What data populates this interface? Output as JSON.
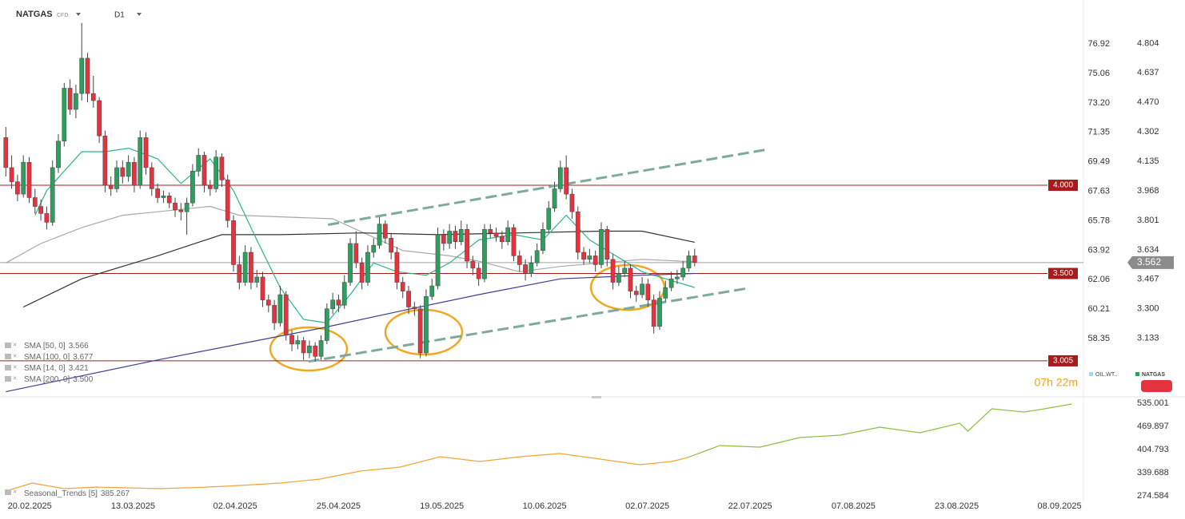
{
  "header": {
    "symbol": "NATGAS",
    "instrument_type": "CFD",
    "timeframe": "D1"
  },
  "chart_data": [
    {
      "type": "candlestick",
      "up_color": "#2e9e5e",
      "down_color": "#e5323f",
      "xlim": [
        -1,
        184.6
      ],
      "ylim": [
        2.81,
        5.05
      ],
      "y2lim": [
        54.78,
        79.69
      ],
      "xticks": [
        {
          "value": 4.1,
          "label": "20.02.2025"
        },
        {
          "value": 21.8,
          "label": "13.03.2025"
        },
        {
          "value": 39.3,
          "label": "02.04.2025"
        },
        {
          "value": 57,
          "label": "25.04.2025"
        },
        {
          "value": 74.7,
          "label": "19.05.2025"
        },
        {
          "value": 92.3,
          "label": "10.06.2025"
        },
        {
          "value": 109.9,
          "label": "02.07.2025"
        },
        {
          "value": 127.5,
          "label": "22.07.2025"
        },
        {
          "value": 145.2,
          "label": "07.08.2025"
        },
        {
          "value": 162.9,
          "label": "23.08.2025"
        },
        {
          "value": 180.5,
          "label": "08.09.2025"
        }
      ],
      "yticks": [
        4.804,
        4.637,
        {
          "value": 4.47,
          "label": "4.470"
        },
        4.302,
        4.135,
        3.968,
        3.801,
        3.634,
        3.467,
        {
          "value": 3.3,
          "label": "3.300"
        },
        3.133
      ],
      "y2ticks": [
        76.92,
        75.06,
        {
          "value": 73.2,
          "label": "73.20"
        },
        71.35,
        69.49,
        67.63,
        65.78,
        63.92,
        62.06,
        60.21,
        58.35
      ],
      "ohlc": [
        [
          4.27,
          4.33,
          4.05,
          4.1
        ],
        [
          4.1,
          4.17,
          3.98,
          4.02
        ],
        [
          4.02,
          4.06,
          3.91,
          3.95
        ],
        [
          3.95,
          4.17,
          3.93,
          4.13
        ],
        [
          4.13,
          4.16,
          3.9,
          3.93
        ],
        [
          3.93,
          3.98,
          3.84,
          3.88
        ],
        [
          3.88,
          3.92,
          3.8,
          3.84
        ],
        [
          3.84,
          3.88,
          3.75,
          3.79
        ],
        [
          3.79,
          4.14,
          3.77,
          4.1
        ],
        [
          4.1,
          4.29,
          4.07,
          4.25
        ],
        [
          4.25,
          4.58,
          4.22,
          4.55
        ],
        [
          4.55,
          4.6,
          4.4,
          4.43
        ],
        [
          4.43,
          4.57,
          4.38,
          4.52
        ],
        [
          4.52,
          4.92,
          4.48,
          4.72
        ],
        [
          4.72,
          4.75,
          4.47,
          4.52
        ],
        [
          4.52,
          4.62,
          4.44,
          4.48
        ],
        [
          4.48,
          4.5,
          4.24,
          4.28
        ],
        [
          4.28,
          4.31,
          3.96,
          4.0
        ],
        [
          4.0,
          4.05,
          3.94,
          3.98
        ],
        [
          3.98,
          4.14,
          3.96,
          4.1
        ],
        [
          4.1,
          4.14,
          4.01,
          4.05
        ],
        [
          4.05,
          4.17,
          4.02,
          4.13
        ],
        [
          4.13,
          4.16,
          3.96,
          4.0
        ],
        [
          4.0,
          4.31,
          3.98,
          4.27
        ],
        [
          4.27,
          4.3,
          4.06,
          4.1
        ],
        [
          4.1,
          4.13,
          3.94,
          3.98
        ],
        [
          3.98,
          4.01,
          3.9,
          3.93
        ],
        [
          3.93,
          3.97,
          3.9,
          3.94
        ],
        [
          3.94,
          3.96,
          3.87,
          3.9
        ],
        [
          3.9,
          3.93,
          3.82,
          3.86
        ],
        [
          3.86,
          3.9,
          3.8,
          3.85
        ],
        [
          3.85,
          3.93,
          3.72,
          3.9
        ],
        [
          3.9,
          4.12,
          3.88,
          4.08
        ],
        [
          4.08,
          4.21,
          4.05,
          4.17
        ],
        [
          4.17,
          4.19,
          3.96,
          4.0
        ],
        [
          4.0,
          4.03,
          3.94,
          3.98
        ],
        [
          3.98,
          4.2,
          3.96,
          4.16
        ],
        [
          4.16,
          4.18,
          3.99,
          4.03
        ],
        [
          4.03,
          4.06,
          3.76,
          3.8
        ],
        [
          3.8,
          3.83,
          3.51,
          3.55
        ],
        [
          3.55,
          3.6,
          3.41,
          3.45
        ],
        [
          3.45,
          3.66,
          3.43,
          3.62
        ],
        [
          3.62,
          3.65,
          3.41,
          3.45
        ],
        [
          3.45,
          3.52,
          3.42,
          3.48
        ],
        [
          3.48,
          3.51,
          3.31,
          3.35
        ],
        [
          3.35,
          3.38,
          3.28,
          3.32
        ],
        [
          3.32,
          3.35,
          3.18,
          3.22
        ],
        [
          3.22,
          3.43,
          3.2,
          3.38
        ],
        [
          3.38,
          3.4,
          3.12,
          3.15
        ],
        [
          3.15,
          3.18,
          3.06,
          3.1
        ],
        [
          3.1,
          3.15,
          3.07,
          3.12
        ],
        [
          3.12,
          3.14,
          3.01,
          3.05
        ],
        [
          3.05,
          3.12,
          3.02,
          3.09
        ],
        [
          3.09,
          3.11,
          3.0,
          3.03
        ],
        [
          3.03,
          3.15,
          3.01,
          3.12
        ],
        [
          3.12,
          3.33,
          3.1,
          3.3
        ],
        [
          3.3,
          3.39,
          3.27,
          3.35
        ],
        [
          3.35,
          3.38,
          3.28,
          3.32
        ],
        [
          3.32,
          3.49,
          3.3,
          3.45
        ],
        [
          3.45,
          3.7,
          3.43,
          3.67
        ],
        [
          3.67,
          3.74,
          3.53,
          3.56
        ],
        [
          3.56,
          3.59,
          3.41,
          3.45
        ],
        [
          3.45,
          3.66,
          3.43,
          3.62
        ],
        [
          3.62,
          3.7,
          3.59,
          3.66
        ],
        [
          3.66,
          3.82,
          3.64,
          3.78
        ],
        [
          3.78,
          3.8,
          3.67,
          3.7
        ],
        [
          3.7,
          3.73,
          3.58,
          3.62
        ],
        [
          3.62,
          3.65,
          3.41,
          3.45
        ],
        [
          3.45,
          3.48,
          3.36,
          3.4
        ],
        [
          3.4,
          3.43,
          3.27,
          3.31
        ],
        [
          3.31,
          3.34,
          3.26,
          3.3
        ],
        [
          3.3,
          3.32,
          3.02,
          3.05
        ],
        [
          3.05,
          3.41,
          3.03,
          3.37
        ],
        [
          3.37,
          3.47,
          3.35,
          3.43
        ],
        [
          3.43,
          3.76,
          3.41,
          3.72
        ],
        [
          3.72,
          3.75,
          3.63,
          3.67
        ],
        [
          3.67,
          3.78,
          3.64,
          3.74
        ],
        [
          3.74,
          3.77,
          3.64,
          3.68
        ],
        [
          3.68,
          3.8,
          3.66,
          3.75
        ],
        [
          3.75,
          3.78,
          3.53,
          3.57
        ],
        [
          3.57,
          3.6,
          3.49,
          3.53
        ],
        [
          3.53,
          3.56,
          3.43,
          3.47
        ],
        [
          3.47,
          3.78,
          3.45,
          3.75
        ],
        [
          3.75,
          3.78,
          3.7,
          3.73
        ],
        [
          3.73,
          3.76,
          3.68,
          3.71
        ],
        [
          3.71,
          3.74,
          3.64,
          3.68
        ],
        [
          3.68,
          3.8,
          3.66,
          3.76
        ],
        [
          3.76,
          3.78,
          3.57,
          3.6
        ],
        [
          3.6,
          3.63,
          3.51,
          3.55
        ],
        [
          3.55,
          3.58,
          3.46,
          3.5
        ],
        [
          3.5,
          3.6,
          3.48,
          3.56
        ],
        [
          3.56,
          3.67,
          3.54,
          3.63
        ],
        [
          3.63,
          3.79,
          3.61,
          3.75
        ],
        [
          3.75,
          3.91,
          3.73,
          3.87
        ],
        [
          3.87,
          4.02,
          3.85,
          3.98
        ],
        [
          3.98,
          4.14,
          3.96,
          4.1
        ],
        [
          4.1,
          4.17,
          3.92,
          3.95
        ],
        [
          3.95,
          3.98,
          3.81,
          3.85
        ],
        [
          3.85,
          3.88,
          3.58,
          3.62
        ],
        [
          3.62,
          3.65,
          3.55,
          3.58
        ],
        [
          3.58,
          3.64,
          3.56,
          3.6
        ],
        [
          3.6,
          3.63,
          3.51,
          3.55
        ],
        [
          3.55,
          3.79,
          3.53,
          3.75
        ],
        [
          3.75,
          3.77,
          3.54,
          3.58
        ],
        [
          3.58,
          3.61,
          3.41,
          3.45
        ],
        [
          3.45,
          3.54,
          3.43,
          3.5
        ],
        [
          3.5,
          3.57,
          3.48,
          3.53
        ],
        [
          3.53,
          3.55,
          3.36,
          3.4
        ],
        [
          3.4,
          3.43,
          3.34,
          3.38
        ],
        [
          3.38,
          3.48,
          3.36,
          3.44
        ],
        [
          3.44,
          3.47,
          3.31,
          3.35
        ],
        [
          3.35,
          3.38,
          3.16,
          3.2
        ],
        [
          3.2,
          3.4,
          3.18,
          3.36
        ],
        [
          3.36,
          3.46,
          3.34,
          3.42
        ],
        [
          3.42,
          3.51,
          3.4,
          3.47
        ],
        [
          3.47,
          3.52,
          3.44,
          3.48
        ],
        [
          3.48,
          3.57,
          3.46,
          3.53
        ],
        [
          3.53,
          3.63,
          3.51,
          3.6
        ],
        [
          3.6,
          3.64,
          3.54,
          3.562
        ]
      ],
      "series": [
        {
          "name": "SMA [50, 0]",
          "last": 3.566,
          "color": "#a8a8a8",
          "x": [
            0,
            6,
            13,
            20,
            26,
            35,
            40,
            56,
            68,
            76,
            81,
            88,
            95,
            102,
            109,
            118
          ],
          "values": [
            3.56,
            3.67,
            3.76,
            3.83,
            3.85,
            3.88,
            3.83,
            3.81,
            3.63,
            3.6,
            3.57,
            3.51,
            3.54,
            3.56,
            3.58,
            3.566
          ]
        },
        {
          "name": "SMA [100, 0]",
          "last": 3.677,
          "color": "#333333",
          "x": [
            3,
            13,
            26,
            37,
            47,
            61,
            74,
            88,
            102,
            109,
            118
          ],
          "values": [
            3.31,
            3.47,
            3.6,
            3.72,
            3.72,
            3.73,
            3.72,
            3.73,
            3.74,
            3.74,
            3.677
          ]
        },
        {
          "name": "SMA [14, 0]",
          "last": 3.421,
          "color": "#2bb58a",
          "x": [
            5,
            7,
            13,
            17,
            21,
            26,
            30,
            35,
            39,
            43,
            47,
            51,
            55,
            59,
            63,
            67,
            72,
            76,
            81,
            87,
            92,
            96,
            100,
            109,
            113,
            118
          ],
          "values": [
            3.83,
            3.97,
            4.19,
            4.19,
            4.21,
            4.15,
            4.01,
            4.15,
            3.97,
            3.69,
            3.42,
            3.24,
            3.22,
            3.38,
            3.56,
            3.51,
            3.49,
            3.56,
            3.69,
            3.72,
            3.69,
            3.83,
            3.69,
            3.51,
            3.47,
            3.421
          ]
        },
        {
          "name": "SMA [200, 0]",
          "last": {
            "value": 3.5,
            "label": "3.500"
          },
          "color": "#3d3f94",
          "x": [
            0,
            13,
            26,
            40,
            54,
            68,
            81,
            95,
            109,
            118
          ],
          "values": [
            2.83,
            2.92,
            3.01,
            3.1,
            3.19,
            3.29,
            3.38,
            3.47,
            3.49,
            3.5
          ]
        }
      ],
      "levels": [
        {
          "value": 4,
          "label": "4.000",
          "color": "#a51c1c"
        },
        {
          "value": 3.5,
          "label": "3.500",
          "color": "#a51c1c"
        },
        {
          "value": 3.005,
          "label": "3.005",
          "color": "#a51c1c"
        }
      ],
      "current_price": 3.562,
      "trendlines": [
        {
          "x": [
            55.2,
            130.1
          ],
          "values": [
            3.776,
            4.201
          ],
          "color": "#7ea99e"
        },
        {
          "x": [
            51.8,
            126.7
          ],
          "values": [
            3.001,
            3.414
          ],
          "color": "#7ea99e"
        }
      ],
      "legend": [
        {
          "name": "OIL.WT..",
          "color": "#a9d4ef"
        },
        {
          "name": "NATGAS",
          "color": "#2e9e5e"
        }
      ],
      "timer": "07h 22m"
    },
    {
      "type": "line",
      "name": "Seasonal_Trends [5]",
      "last": 385.267,
      "xlim": [
        -1,
        184.6
      ],
      "ylim": [
        258.9,
        546.2
      ],
      "yticks": [
        535.001,
        469.897,
        404.793,
        339.688,
        274.584
      ],
      "series": [
        {
          "color": "#f2a33a",
          "x": [
            0,
            4.5,
            10,
            15.5,
            26.4,
            34.7,
            40.1,
            47,
            53.8,
            60.7,
            67.5,
            74.4,
            81.2,
            88.1,
            94.9,
            101.8,
            108.6,
            114.1,
            116.8
          ],
          "values": [
            288.0,
            310.5,
            294.8,
            299.3,
            294.8,
            299.3,
            303.8,
            310.5,
            321.7,
            344.2,
            355.4,
            384.6,
            371.1,
            384.6,
            393.6,
            377.8,
            362.1,
            371.1,
            382.3
          ]
        },
        {
          "color": "#8cbf3f",
          "x": [
            116.8,
            122.3,
            129.2,
            136,
            142.9,
            149.7,
            156.6,
            163.4,
            164.8,
            168.9,
            174.4,
            177.1,
            182.6
          ],
          "values": [
            382.3,
            416.0,
            411.5,
            438.4,
            445.2,
            467.6,
            451.9,
            478.8,
            456.4,
            519.3,
            510.3,
            517.0,
            532.7
          ]
        }
      ]
    }
  ]
}
